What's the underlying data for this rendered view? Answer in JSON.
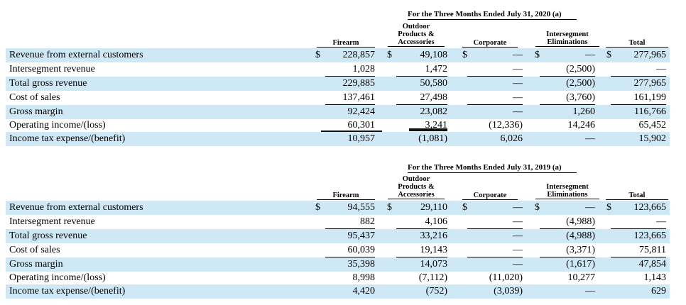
{
  "tables": [
    {
      "title": "For the Three Months Ended July 31, 2020 (a)",
      "headers": {
        "firearm": "Firearm",
        "outdoor_1": "Outdoor",
        "outdoor_2": "Products &",
        "outdoor_3": "Accessories",
        "corporate": "Corporate",
        "interseg_1": "Intersegment",
        "interseg_2": "Eliminations",
        "total": "Total"
      },
      "rows": [
        {
          "label": "Revenue from external customers",
          "firearm": "228,857",
          "outdoor": "49,108",
          "corporate": "—",
          "interseg": "—",
          "total": "277,965"
        },
        {
          "label": "Intersegment revenue",
          "firearm": "1,028",
          "outdoor": "1,472",
          "corporate": "—",
          "interseg": "(2,500)",
          "total": "—"
        },
        {
          "label": "Total gross revenue",
          "firearm": "229,885",
          "outdoor": "50,580",
          "corporate": "—",
          "interseg": "(2,500)",
          "total": "277,965"
        },
        {
          "label": "Cost of sales",
          "firearm": "137,461",
          "outdoor": "27,498",
          "corporate": "—",
          "interseg": "(3,760)",
          "total": "161,199"
        },
        {
          "label": "Gross margin",
          "firearm": "92,424",
          "outdoor": "23,082",
          "corporate": "—",
          "interseg": "1,260",
          "total": "116,766"
        },
        {
          "label": "Operating income/(loss)",
          "firearm": "60,301",
          "outdoor": "3,241",
          "corporate": "(12,336)",
          "interseg": "14,246",
          "total": "65,452"
        },
        {
          "label": "Income tax expense/(benefit)",
          "firearm": "10,957",
          "outdoor": "(1,081)",
          "corporate": "6,026",
          "interseg": "—",
          "total": "15,902"
        }
      ]
    },
    {
      "title": "For the Three Months Ended July 31, 2019 (a)",
      "headers": {
        "firearm": "Firearm",
        "outdoor_1": "Outdoor",
        "outdoor_2": "Products &",
        "outdoor_3": "Accessories",
        "corporate": "Corporate",
        "interseg_1": "Intersegment",
        "interseg_2": "Eliminations",
        "total": "Total"
      },
      "rows": [
        {
          "label": "Revenue from external customers",
          "firearm": "94,555",
          "outdoor": "29,110",
          "corporate": "—",
          "interseg": "—",
          "total": "123,665"
        },
        {
          "label": "Intersegment revenue",
          "firearm": "882",
          "outdoor": "4,106",
          "corporate": "—",
          "interseg": "(4,988)",
          "total": "—"
        },
        {
          "label": "Total gross revenue",
          "firearm": "95,437",
          "outdoor": "33,216",
          "corporate": "—",
          "interseg": "(4,988)",
          "total": "123,665"
        },
        {
          "label": "Cost of sales",
          "firearm": "60,039",
          "outdoor": "19,143",
          "corporate": "—",
          "interseg": "(3,371)",
          "total": "75,811"
        },
        {
          "label": "Gross margin",
          "firearm": "35,398",
          "outdoor": "14,073",
          "corporate": "—",
          "interseg": "(1,617)",
          "total": "47,854"
        },
        {
          "label": "Operating income/(loss)",
          "firearm": "8,998",
          "outdoor": "(7,112)",
          "corporate": "(11,020)",
          "interseg": "10,277",
          "total": "1,143"
        },
        {
          "label": "Income tax expense/(benefit)",
          "firearm": "4,420",
          "outdoor": "(752)",
          "corporate": "(3,039)",
          "interseg": "—",
          "total": "629"
        }
      ]
    }
  ],
  "currency_symbol": "$"
}
